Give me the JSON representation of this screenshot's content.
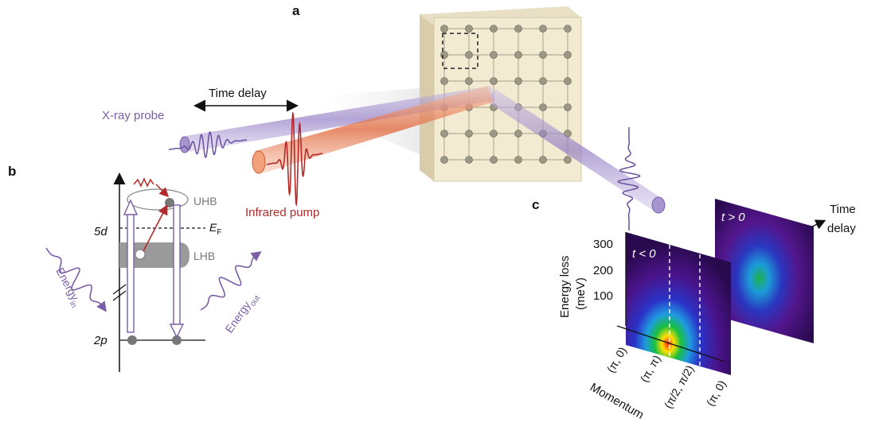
{
  "panels": {
    "a": "a",
    "b": "b",
    "c": "c"
  },
  "panel_a": {
    "time_delay": "Time delay",
    "xray_probe": "X-ray probe",
    "infrared_pump": "Infrared pump"
  },
  "panel_b": {
    "uhb": "UHB",
    "lhb": "LHB",
    "level_5d": "5d",
    "level_2p": "2p",
    "fermi": "E",
    "fermi_sub": "F",
    "energy_in": "Energy",
    "energy_in_sub": "in",
    "energy_out": "Energy",
    "energy_out_sub": "out"
  },
  "panel_c": {
    "ylabel_1": "Energy loss",
    "ylabel_2": "(meV)",
    "yticks": [
      "300",
      "200",
      "100"
    ],
    "xlabel": "Momentum",
    "xticks": [
      "(π, 0)",
      "(π, π)",
      "(π/2, π/2)",
      "(π, 0)"
    ],
    "map_before": "t < 0",
    "map_after": "t > 0",
    "delay_axis_1": "Time",
    "delay_axis_2": "delay"
  },
  "colors": {
    "xray": "#7b5ea8",
    "pump": "#c0392b",
    "crystal": "#f3ead2",
    "band": "#8c8c8c",
    "map_bg": "#3b1266"
  }
}
